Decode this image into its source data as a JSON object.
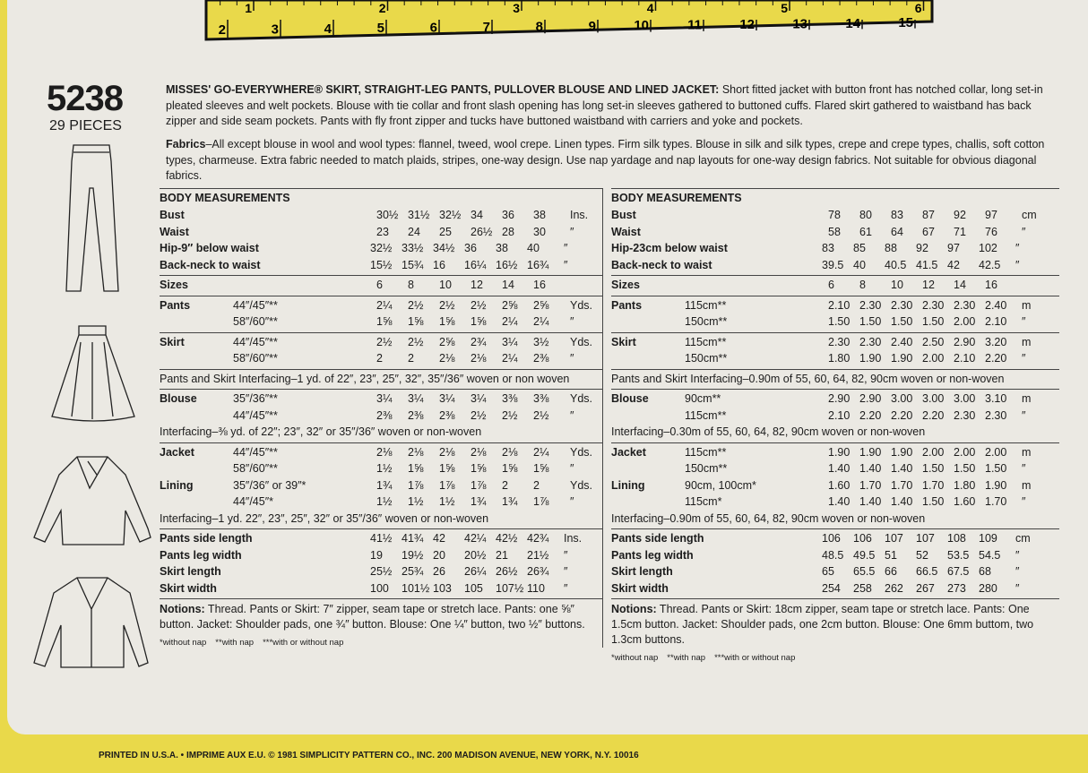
{
  "ruler": {
    "inches": [
      "1",
      "2",
      "3",
      "4",
      "5",
      "6"
    ],
    "cm": [
      "2",
      "3",
      "4",
      "5",
      "6",
      "7",
      "8",
      "9",
      "10",
      "11",
      "12",
      "13",
      "14",
      "15"
    ]
  },
  "header": {
    "number": "5238",
    "pieces": "29 PIECES"
  },
  "description": {
    "title": "MISSES' GO-EVERYWHERE® SKIRT, STRAIGHT-LEG PANTS, PULLOVER BLOUSE AND LINED JACKET:",
    "text": "Short fitted jacket with button front has notched collar, long set-in pleated sleeves and welt pockets. Blouse with tie collar and front slash opening has long set-in sleeves gathered to buttoned cuffs. Flared skirt gathered to waistband has back zipper and side seam pockets. Pants with fly front zipper and tucks have buttoned waistband with carriers and yoke and pockets."
  },
  "fabrics": {
    "title": "Fabrics",
    "text": "–All except blouse in wool and wool types: flannel, tweed, wool crepe. Linen types. Firm silk types. Blouse in silk and silk types, crepe and crepe types, challis, soft cotton types, charmeuse. Extra fabric needed to match plaids, stripes, one-way design. Use nap yardage and nap layouts for one-way design fabrics. Not suitable for obvious diagonal fabrics."
  },
  "tables": [
    {
      "title": "BODY MEASUREMENTS",
      "sections": [
        {
          "rows": [
            {
              "label": "Bust",
              "values": [
                "30½",
                "31½",
                "32½",
                "34",
                "36",
                "38"
              ],
              "unit": "Ins."
            },
            {
              "label": "Waist",
              "values": [
                "23",
                "24",
                "25",
                "26½",
                "28",
                "30"
              ],
              "unit": "″"
            },
            {
              "label": "Hip-9″ below waist",
              "values": [
                "32½",
                "33½",
                "34½",
                "36",
                "38",
                "40"
              ],
              "unit": "″"
            },
            {
              "label": "Back-neck to waist",
              "values": [
                "15½",
                "15¾",
                "16",
                "16¼",
                "16½",
                "16¾"
              ],
              "unit": "″"
            }
          ]
        },
        {
          "rows": [
            {
              "label": "Sizes",
              "values": [
                "6",
                "8",
                "10",
                "12",
                "14",
                "16"
              ]
            }
          ]
        },
        {
          "rows": [
            {
              "label": "Pants",
              "fabric": "44″/45″**",
              "values": [
                "2¼",
                "2½",
                "2½",
                "2½",
                "2⅝",
                "2⅝"
              ],
              "unit": "Yds."
            },
            {
              "fabric": "58″/60″**",
              "values": [
                "1⅝",
                "1⅝",
                "1⅝",
                "1⅝",
                "2¼",
                "2¼"
              ],
              "unit": "″"
            }
          ]
        },
        {
          "rows": [
            {
              "label": "Skirt",
              "fabric": "44″/45″**",
              "values": [
                "2½",
                "2½",
                "2⅝",
                "2¾",
                "3¼",
                "3½"
              ],
              "unit": "Yds."
            },
            {
              "fabric": "58″/60″**",
              "values": [
                "2",
                "2",
                "2⅛",
                "2⅛",
                "2¼",
                "2⅜"
              ],
              "unit": "″"
            }
          ]
        },
        {
          "rows": [
            "Pants and Skirt Interfacing–1 yd. of 22″, 23″, 25″, 32″, 35″/36″ woven or non woven"
          ]
        },
        {
          "rows": [
            {
              "label": "Blouse",
              "fabric": "35″/36″**",
              "values": [
                "3¼",
                "3¼",
                "3¼",
                "3¼",
                "3⅜",
                "3⅜"
              ],
              "unit": "Yds."
            },
            {
              "fabric": "44″/45″**",
              "values": [
                "2⅜",
                "2⅜",
                "2⅜",
                "2½",
                "2½",
                "2½"
              ],
              "unit": "″"
            },
            "Interfacing–⅜ yd. of 22″; 23″, 32″ or 35″/36″ woven or non-woven"
          ]
        },
        {
          "rows": [
            {
              "label": "Jacket",
              "fabric": "44″/45″**",
              "values": [
                "2⅛",
                "2⅛",
                "2⅛",
                "2⅛",
                "2⅛",
                "2¼"
              ],
              "unit": "Yds."
            },
            {
              "fabric": "58″/60″**",
              "values": [
                "1½",
                "1⅝",
                "1⅝",
                "1⅝",
                "1⅝",
                "1⅝"
              ],
              "unit": "″"
            },
            {
              "label": "Lining",
              "fabric": "35″/36″ or 39″*",
              "values": [
                "1¾",
                "1⅞",
                "1⅞",
                "1⅞",
                "2",
                "2"
              ],
              "unit": "Yds."
            },
            {
              "fabric": "44″/45″*",
              "values": [
                "1½",
                "1½",
                "1½",
                "1¾",
                "1¾",
                "1⅞"
              ],
              "unit": "″"
            },
            "Interfacing–1 yd. 22″, 23″, 25″, 32″ or 35″/36″ woven or non-woven"
          ]
        },
        {
          "rows": [
            {
              "label": "Pants side length",
              "values": [
                "41½",
                "41¾",
                "42",
                "42¼",
                "42½",
                "42¾"
              ],
              "unit": "Ins."
            },
            {
              "label": "Pants leg width",
              "values": [
                "19",
                "19½",
                "20",
                "20½",
                "21",
                "21½"
              ],
              "unit": "″"
            },
            {
              "label": "Skirt length",
              "values": [
                "25½",
                "25¾",
                "26",
                "26¼",
                "26½",
                "26¾"
              ],
              "unit": "″"
            },
            {
              "label": "Skirt width",
              "values": [
                "100",
                "101½",
                "103",
                "105",
                "107½",
                "110"
              ],
              "unit": "″"
            }
          ]
        }
      ],
      "notions": {
        "title": "Notions:",
        "text": " Thread. Pants or Skirt: 7″ zipper, seam tape or stretch lace. Pants: one ⅝″ button. Jacket: Shoulder pads, one ¾″ button. Blouse: One ¼″ button, two ½″ buttons."
      },
      "footnotes": [
        "*without nap",
        "**with nap",
        "***with or without nap"
      ]
    },
    {
      "title": "BODY MEASUREMENTS",
      "sections": [
        {
          "rows": [
            {
              "label": "Bust",
              "values": [
                "78",
                "80",
                "83",
                "87",
                "92",
                "97"
              ],
              "unit": "cm"
            },
            {
              "label": "Waist",
              "values": [
                "58",
                "61",
                "64",
                "67",
                "71",
                "76"
              ],
              "unit": "″"
            },
            {
              "label": "Hip-23cm below waist",
              "values": [
                "83",
                "85",
                "88",
                "92",
                "97",
                "102"
              ],
              "unit": "″"
            },
            {
              "label": "Back-neck to waist",
              "values": [
                "39.5",
                "40",
                "40.5",
                "41.5",
                "42",
                "42.5"
              ],
              "unit": "″"
            }
          ]
        },
        {
          "rows": [
            {
              "label": "Sizes",
              "values": [
                "6",
                "8",
                "10",
                "12",
                "14",
                "16"
              ]
            }
          ]
        },
        {
          "rows": [
            {
              "label": "Pants",
              "fabric": "115cm**",
              "values": [
                "2.10",
                "2.30",
                "2.30",
                "2.30",
                "2.30",
                "2.40"
              ],
              "unit": "m"
            },
            {
              "fabric": "150cm**",
              "values": [
                "1.50",
                "1.50",
                "1.50",
                "1.50",
                "2.00",
                "2.10"
              ],
              "unit": "″"
            }
          ]
        },
        {
          "rows": [
            {
              "label": "Skirt",
              "fabric": "115cm**",
              "values": [
                "2.30",
                "2.30",
                "2.40",
                "2.50",
                "2.90",
                "3.20"
              ],
              "unit": "m"
            },
            {
              "fabric": "150cm**",
              "values": [
                "1.80",
                "1.90",
                "1.90",
                "2.00",
                "2.10",
                "2.20"
              ],
              "unit": "″"
            }
          ]
        },
        {
          "rows": [
            "Pants and Skirt Interfacing–0.90m of 55, 60, 64, 82, 90cm woven or non-woven"
          ]
        },
        {
          "rows": [
            {
              "label": "Blouse",
              "fabric": "90cm**",
              "values": [
                "2.90",
                "2.90",
                "3.00",
                "3.00",
                "3.00",
                "3.10"
              ],
              "unit": "m"
            },
            {
              "fabric": "115cm**",
              "values": [
                "2.10",
                "2.20",
                "2.20",
                "2.20",
                "2.30",
                "2.30"
              ],
              "unit": "″"
            },
            "Interfacing–0.30m of 55, 60, 64, 82, 90cm woven or non-woven"
          ]
        },
        {
          "rows": [
            {
              "label": "Jacket",
              "fabric": "115cm**",
              "values": [
                "1.90",
                "1.90",
                "1.90",
                "2.00",
                "2.00",
                "2.00"
              ],
              "unit": "m"
            },
            {
              "fabric": "150cm**",
              "values": [
                "1.40",
                "1.40",
                "1.40",
                "1.50",
                "1.50",
                "1.50"
              ],
              "unit": "″"
            },
            {
              "label": "Lining",
              "fabric": "90cm, 100cm*",
              "values": [
                "1.60",
                "1.70",
                "1.70",
                "1.70",
                "1.80",
                "1.90"
              ],
              "unit": "m"
            },
            {
              "fabric": "115cm*",
              "values": [
                "1.40",
                "1.40",
                "1.40",
                "1.50",
                "1.60",
                "1.70"
              ],
              "unit": "″"
            },
            "Interfacing–0.90m of 55, 60, 64, 82, 90cm woven or non-woven"
          ]
        },
        {
          "rows": [
            {
              "label": "Pants side length",
              "values": [
                "106",
                "106",
                "107",
                "107",
                "108",
                "109"
              ],
              "unit": "cm"
            },
            {
              "label": "Pants leg width",
              "values": [
                "48.5",
                "49.5",
                "51",
                "52",
                "53.5",
                "54.5"
              ],
              "unit": "″"
            },
            {
              "label": "Skirt length",
              "values": [
                "65",
                "65.5",
                "66",
                "66.5",
                "67.5",
                "68"
              ],
              "unit": "″"
            },
            {
              "label": "Skirt width",
              "values": [
                "254",
                "258",
                "262",
                "267",
                "273",
                "280"
              ],
              "unit": "″"
            }
          ]
        }
      ],
      "notions": {
        "title": "Notions:",
        "text": " Thread. Pants or Skirt: 18cm zipper, seam tape or stretch lace. Pants: One 1.5cm button. Jacket: Shoulder pads, one 2cm button. Blouse: One 6mm buttom, two 1.3cm buttons."
      },
      "footnotes": [
        "*without nap",
        "**with nap",
        "***with or without nap"
      ]
    }
  ],
  "footer": {
    "text": "PRINTED IN U.S.A. • IMPRIME AUX E.U. © 1981 SIMPLICITY PATTERN CO., INC. 200 MADISON AVENUE, NEW YORK, N.Y. 10016"
  }
}
